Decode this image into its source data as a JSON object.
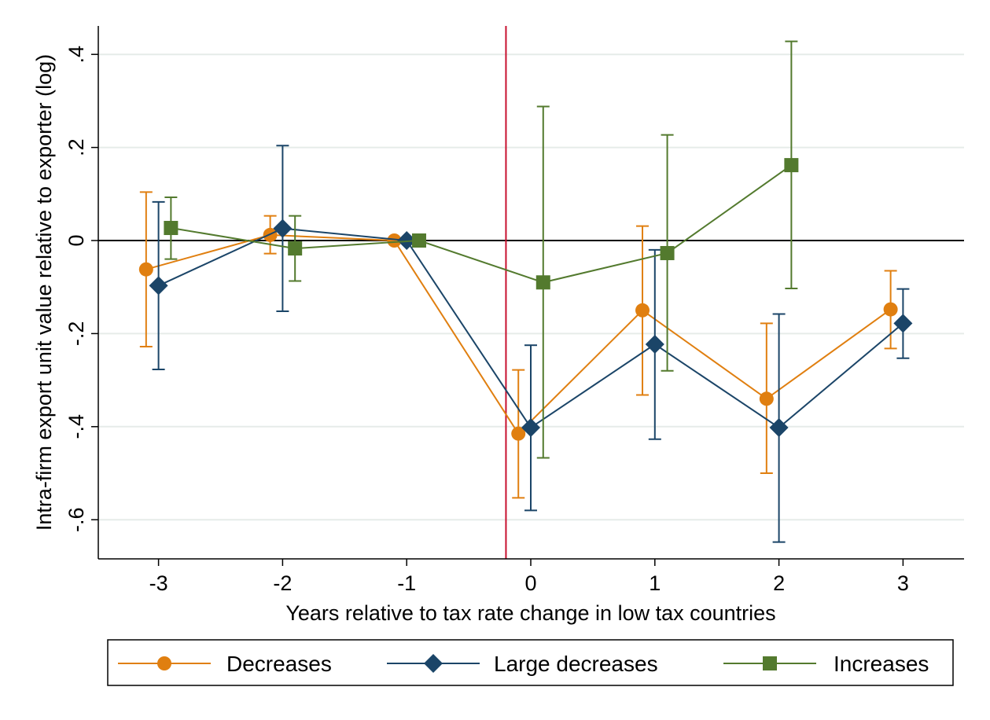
{
  "chart_data": {
    "type": "line",
    "xlabel": "Years relative to tax rate change in low tax countries",
    "ylabel": "Intra-firm export unit value relative to exporter (log)",
    "xlim": [
      -3.5,
      3.5
    ],
    "ylim": [
      -0.68,
      0.46
    ],
    "xticks": [
      {
        "value": -3,
        "label": "-3"
      },
      {
        "value": -2,
        "label": "-2"
      },
      {
        "value": -1,
        "label": "-1"
      },
      {
        "value": 0,
        "label": "0"
      },
      {
        "value": 1,
        "label": "1"
      },
      {
        "value": 2,
        "label": "2"
      },
      {
        "value": 3,
        "label": "3"
      }
    ],
    "yticks": [
      {
        "value": 0.4,
        "label": ".4"
      },
      {
        "value": 0.2,
        "label": ".2"
      },
      {
        "value": 0,
        "label": "0"
      },
      {
        "value": -0.2,
        "label": "-.2"
      },
      {
        "value": -0.4,
        "label": "-.4"
      },
      {
        "value": -0.6,
        "label": "-.6"
      }
    ],
    "grid": true,
    "reference_lines": {
      "horizontal_y": 0,
      "vertical_x": -0.2,
      "vertical_color": "#c8102e"
    },
    "legend_position": "bottom",
    "series": [
      {
        "name": "Decreases",
        "color": "#e07f10",
        "marker": "circle",
        "x": [
          -3.1,
          -2.1,
          -1.1,
          -0.1,
          0.9,
          1.9,
          2.9
        ],
        "y": [
          -0.062,
          0.012,
          0.0,
          -0.415,
          -0.15,
          -0.34,
          -0.148
        ],
        "ci_low": [
          -0.228,
          -0.028,
          0.0,
          -0.553,
          -0.332,
          -0.5,
          -0.232
        ],
        "ci_high": [
          0.104,
          0.053,
          0.0,
          -0.278,
          0.031,
          -0.178,
          -0.065
        ]
      },
      {
        "name": "Large decreases",
        "color": "#1b4568",
        "marker": "diamond",
        "x": [
          -3.0,
          -2.0,
          -1.0,
          0.0,
          1.0,
          2.0,
          3.0
        ],
        "y": [
          -0.097,
          0.026,
          0.0,
          -0.402,
          -0.223,
          -0.402,
          -0.178
        ],
        "ci_low": [
          -0.277,
          -0.152,
          0.0,
          -0.58,
          -0.427,
          -0.648,
          -0.253
        ],
        "ci_high": [
          0.083,
          0.204,
          0.0,
          -0.225,
          -0.02,
          -0.158,
          -0.104
        ]
      },
      {
        "name": "Increases",
        "color": "#537a2e",
        "marker": "square",
        "x": [
          -2.9,
          -1.9,
          -0.9,
          0.1,
          1.1,
          2.1
        ],
        "y": [
          0.027,
          -0.017,
          0.0,
          -0.09,
          -0.027,
          0.162
        ],
        "ci_low": [
          -0.04,
          -0.087,
          0.0,
          -0.467,
          -0.28,
          -0.103
        ],
        "ci_high": [
          0.093,
          0.053,
          0.0,
          0.288,
          0.227,
          0.428
        ]
      }
    ]
  }
}
